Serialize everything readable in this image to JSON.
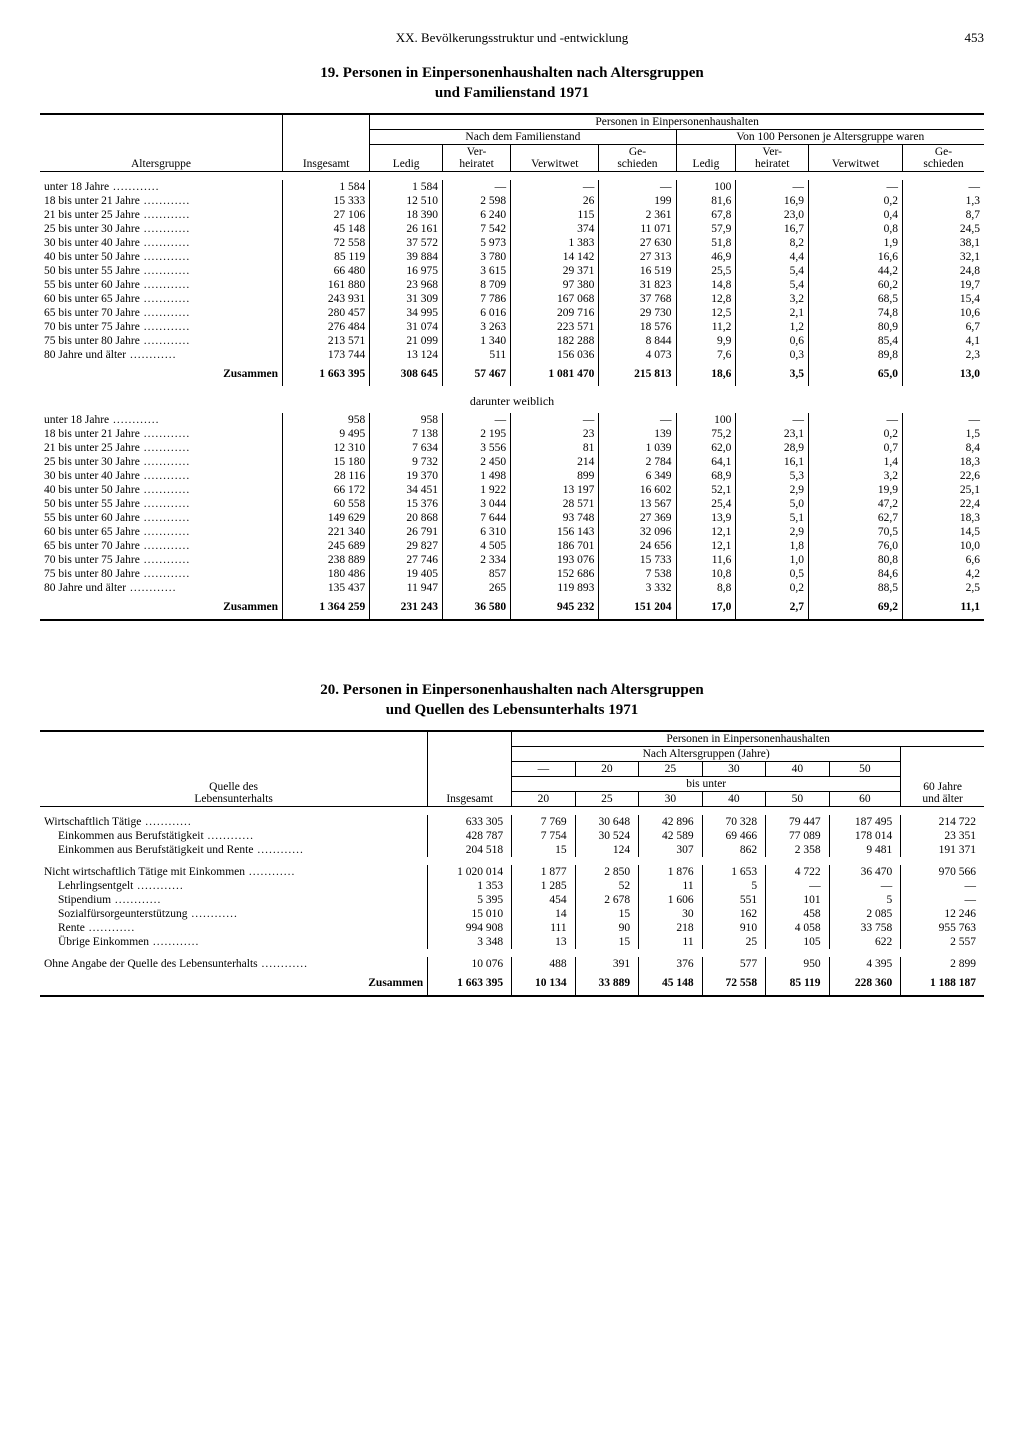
{
  "page": {
    "chapter": "XX. Bevölkerungsstruktur und -entwicklung",
    "number": "453"
  },
  "table19": {
    "title": "19. Personen in Einpersonenhaushalten nach Altersgruppen\nund Familienstand 1971",
    "head": {
      "h1": "Altersgruppe",
      "h2": "Insgesamt",
      "h3": "Personen in Einpersonenhaushalten",
      "h4": "Nach dem Familienstand",
      "h5": "Von 100 Personen je Altersgruppe waren",
      "c1": "Ledig",
      "c2": "Ver-\nheiratet",
      "c3": "Verwitwet",
      "c4": "Ge-\nschieden"
    },
    "subtitle": "darunter weiblich",
    "rows_all": [
      {
        "l": "unter 18 Jahre",
        "ins": "1 584",
        "a": "1 584",
        "b": "—",
        "c": "—",
        "d": "—",
        "p1": "100",
        "p2": "—",
        "p3": "—",
        "p4": "—"
      },
      {
        "l": "18 bis unter 21 Jahre",
        "ins": "15 333",
        "a": "12 510",
        "b": "2 598",
        "c": "26",
        "d": "199",
        "p1": "81,6",
        "p2": "16,9",
        "p3": "0,2",
        "p4": "1,3"
      },
      {
        "l": "21 bis unter 25 Jahre",
        "ins": "27 106",
        "a": "18 390",
        "b": "6 240",
        "c": "115",
        "d": "2 361",
        "p1": "67,8",
        "p2": "23,0",
        "p3": "0,4",
        "p4": "8,7"
      },
      {
        "l": "25 bis unter 30 Jahre",
        "ins": "45 148",
        "a": "26 161",
        "b": "7 542",
        "c": "374",
        "d": "11 071",
        "p1": "57,9",
        "p2": "16,7",
        "p3": "0,8",
        "p4": "24,5"
      },
      {
        "l": "30 bis unter 40 Jahre",
        "ins": "72 558",
        "a": "37 572",
        "b": "5 973",
        "c": "1 383",
        "d": "27 630",
        "p1": "51,8",
        "p2": "8,2",
        "p3": "1,9",
        "p4": "38,1"
      },
      {
        "l": "40 bis unter 50 Jahre",
        "ins": "85 119",
        "a": "39 884",
        "b": "3 780",
        "c": "14 142",
        "d": "27 313",
        "p1": "46,9",
        "p2": "4,4",
        "p3": "16,6",
        "p4": "32,1"
      },
      {
        "l": "50 bis unter 55 Jahre",
        "ins": "66 480",
        "a": "16 975",
        "b": "3 615",
        "c": "29 371",
        "d": "16 519",
        "p1": "25,5",
        "p2": "5,4",
        "p3": "44,2",
        "p4": "24,8"
      },
      {
        "l": "55 bis unter 60 Jahre",
        "ins": "161 880",
        "a": "23 968",
        "b": "8 709",
        "c": "97 380",
        "d": "31 823",
        "p1": "14,8",
        "p2": "5,4",
        "p3": "60,2",
        "p4": "19,7"
      },
      {
        "l": "60 bis unter 65 Jahre",
        "ins": "243 931",
        "a": "31 309",
        "b": "7 786",
        "c": "167 068",
        "d": "37 768",
        "p1": "12,8",
        "p2": "3,2",
        "p3": "68,5",
        "p4": "15,4"
      },
      {
        "l": "65 bis unter 70 Jahre",
        "ins": "280 457",
        "a": "34 995",
        "b": "6 016",
        "c": "209 716",
        "d": "29 730",
        "p1": "12,5",
        "p2": "2,1",
        "p3": "74,8",
        "p4": "10,6"
      },
      {
        "l": "70 bis unter 75 Jahre",
        "ins": "276 484",
        "a": "31 074",
        "b": "3 263",
        "c": "223 571",
        "d": "18 576",
        "p1": "11,2",
        "p2": "1,2",
        "p3": "80,9",
        "p4": "6,7"
      },
      {
        "l": "75 bis unter 80 Jahre",
        "ins": "213 571",
        "a": "21 099",
        "b": "1 340",
        "c": "182 288",
        "d": "8 844",
        "p1": "9,9",
        "p2": "0,6",
        "p3": "85,4",
        "p4": "4,1"
      },
      {
        "l": "80 Jahre und älter",
        "ins": "173 744",
        "a": "13 124",
        "b": "511",
        "c": "156 036",
        "d": "4 073",
        "p1": "7,6",
        "p2": "0,3",
        "p3": "89,8",
        "p4": "2,3"
      }
    ],
    "sum_all": {
      "l": "Zusammen",
      "ins": "1 663 395",
      "a": "308 645",
      "b": "57 467",
      "c": "1 081 470",
      "d": "215 813",
      "p1": "18,6",
      "p2": "3,5",
      "p3": "65,0",
      "p4": "13,0"
    },
    "rows_f": [
      {
        "l": "unter 18 Jahre",
        "ins": "958",
        "a": "958",
        "b": "—",
        "c": "—",
        "d": "—",
        "p1": "100",
        "p2": "—",
        "p3": "—",
        "p4": "—"
      },
      {
        "l": "18 bis unter 21 Jahre",
        "ins": "9 495",
        "a": "7 138",
        "b": "2 195",
        "c": "23",
        "d": "139",
        "p1": "75,2",
        "p2": "23,1",
        "p3": "0,2",
        "p4": "1,5"
      },
      {
        "l": "21 bis unter 25 Jahre",
        "ins": "12 310",
        "a": "7 634",
        "b": "3 556",
        "c": "81",
        "d": "1 039",
        "p1": "62,0",
        "p2": "28,9",
        "p3": "0,7",
        "p4": "8,4"
      },
      {
        "l": "25 bis unter 30 Jahre",
        "ins": "15 180",
        "a": "9 732",
        "b": "2 450",
        "c": "214",
        "d": "2 784",
        "p1": "64,1",
        "p2": "16,1",
        "p3": "1,4",
        "p4": "18,3"
      },
      {
        "l": "30 bis unter 40 Jahre",
        "ins": "28 116",
        "a": "19 370",
        "b": "1 498",
        "c": "899",
        "d": "6 349",
        "p1": "68,9",
        "p2": "5,3",
        "p3": "3,2",
        "p4": "22,6"
      },
      {
        "l": "40 bis unter 50 Jahre",
        "ins": "66 172",
        "a": "34 451",
        "b": "1 922",
        "c": "13 197",
        "d": "16 602",
        "p1": "52,1",
        "p2": "2,9",
        "p3": "19,9",
        "p4": "25,1"
      },
      {
        "l": "50 bis unter 55 Jahre",
        "ins": "60 558",
        "a": "15 376",
        "b": "3 044",
        "c": "28 571",
        "d": "13 567",
        "p1": "25,4",
        "p2": "5,0",
        "p3": "47,2",
        "p4": "22,4"
      },
      {
        "l": "55 bis unter 60 Jahre",
        "ins": "149 629",
        "a": "20 868",
        "b": "7 644",
        "c": "93 748",
        "d": "27 369",
        "p1": "13,9",
        "p2": "5,1",
        "p3": "62,7",
        "p4": "18,3"
      },
      {
        "l": "60 bis unter 65 Jahre",
        "ins": "221 340",
        "a": "26 791",
        "b": "6 310",
        "c": "156 143",
        "d": "32 096",
        "p1": "12,1",
        "p2": "2,9",
        "p3": "70,5",
        "p4": "14,5"
      },
      {
        "l": "65 bis unter 70 Jahre",
        "ins": "245 689",
        "a": "29 827",
        "b": "4 505",
        "c": "186 701",
        "d": "24 656",
        "p1": "12,1",
        "p2": "1,8",
        "p3": "76,0",
        "p4": "10,0"
      },
      {
        "l": "70 bis unter 75 Jahre",
        "ins": "238 889",
        "a": "27 746",
        "b": "2 334",
        "c": "193 076",
        "d": "15 733",
        "p1": "11,6",
        "p2": "1,0",
        "p3": "80,8",
        "p4": "6,6"
      },
      {
        "l": "75 bis unter 80 Jahre",
        "ins": "180 486",
        "a": "19 405",
        "b": "857",
        "c": "152 686",
        "d": "7 538",
        "p1": "10,8",
        "p2": "0,5",
        "p3": "84,6",
        "p4": "4,2"
      },
      {
        "l": "80 Jahre und älter",
        "ins": "135 437",
        "a": "11 947",
        "b": "265",
        "c": "119 893",
        "d": "3 332",
        "p1": "8,8",
        "p2": "0,2",
        "p3": "88,5",
        "p4": "2,5"
      }
    ],
    "sum_f": {
      "l": "Zusammen",
      "ins": "1 364 259",
      "a": "231 243",
      "b": "36 580",
      "c": "945 232",
      "d": "151 204",
      "p1": "17,0",
      "p2": "2,7",
      "p3": "69,2",
      "p4": "11,1"
    }
  },
  "table20": {
    "title": "20. Personen in Einpersonenhaushalten nach Altersgruppen\nund Quellen des Lebensunterhalts 1971",
    "head": {
      "h1": "Quelle des\nLebensunterhalts",
      "h2": "Insgesamt",
      "h3": "Personen in Einpersonenhaushalten",
      "h4": "Nach Altersgruppen (Jahre)",
      "bisunter": "bis unter",
      "last": "60 Jahre\nund älter",
      "c": [
        "—",
        "20",
        "25",
        "30",
        "40",
        "50"
      ],
      "c2": [
        "20",
        "25",
        "30",
        "40",
        "50",
        "60"
      ]
    },
    "rows": [
      {
        "l": "Wirtschaftlich Tätige",
        "indent": 0,
        "bold": true,
        "v": [
          "633 305",
          "7 769",
          "30 648",
          "42 896",
          "70 328",
          "79 447",
          "187 495",
          "214 722"
        ]
      },
      {
        "l": "Einkommen aus Berufstätigkeit",
        "indent": 1,
        "v": [
          "428 787",
          "7 754",
          "30 524",
          "42 589",
          "69 466",
          "77 089",
          "178 014",
          "23 351"
        ]
      },
      {
        "l": "Einkommen aus Berufstätigkeit und Rente",
        "indent": 1,
        "v": [
          "204 518",
          "15",
          "124",
          "307",
          "862",
          "2 358",
          "9 481",
          "191 371"
        ]
      },
      {
        "l": "Nicht wirtschaftlich Tätige mit Einkommen",
        "indent": 0,
        "bold": true,
        "v": [
          "1 020 014",
          "1 877",
          "2 850",
          "1 876",
          "1 653",
          "4 722",
          "36 470",
          "970 566"
        ]
      },
      {
        "l": "Lehrlingsentgelt",
        "indent": 1,
        "v": [
          "1 353",
          "1 285",
          "52",
          "11",
          "5",
          "—",
          "—",
          "—"
        ]
      },
      {
        "l": "Stipendium",
        "indent": 1,
        "v": [
          "5 395",
          "454",
          "2 678",
          "1 606",
          "551",
          "101",
          "5",
          "—"
        ]
      },
      {
        "l": "Sozialfürsorgeunterstützung",
        "indent": 1,
        "v": [
          "15 010",
          "14",
          "15",
          "30",
          "162",
          "458",
          "2 085",
          "12 246"
        ]
      },
      {
        "l": "Rente",
        "indent": 1,
        "v": [
          "994 908",
          "111",
          "90",
          "218",
          "910",
          "4 058",
          "33 758",
          "955 763"
        ]
      },
      {
        "l": "Übrige Einkommen",
        "indent": 1,
        "v": [
          "3 348",
          "13",
          "15",
          "11",
          "25",
          "105",
          "622",
          "2 557"
        ]
      },
      {
        "l": "Ohne Angabe der Quelle des Lebensunterhalts",
        "indent": 0,
        "bold": true,
        "v": [
          "10 076",
          "488",
          "391",
          "376",
          "577",
          "950",
          "4 395",
          "2 899"
        ]
      }
    ],
    "sum": {
      "l": "Zusammen",
      "v": [
        "1 663 395",
        "10 134",
        "33 889",
        "45 148",
        "72 558",
        "85 119",
        "228 360",
        "1 188 187"
      ]
    }
  }
}
